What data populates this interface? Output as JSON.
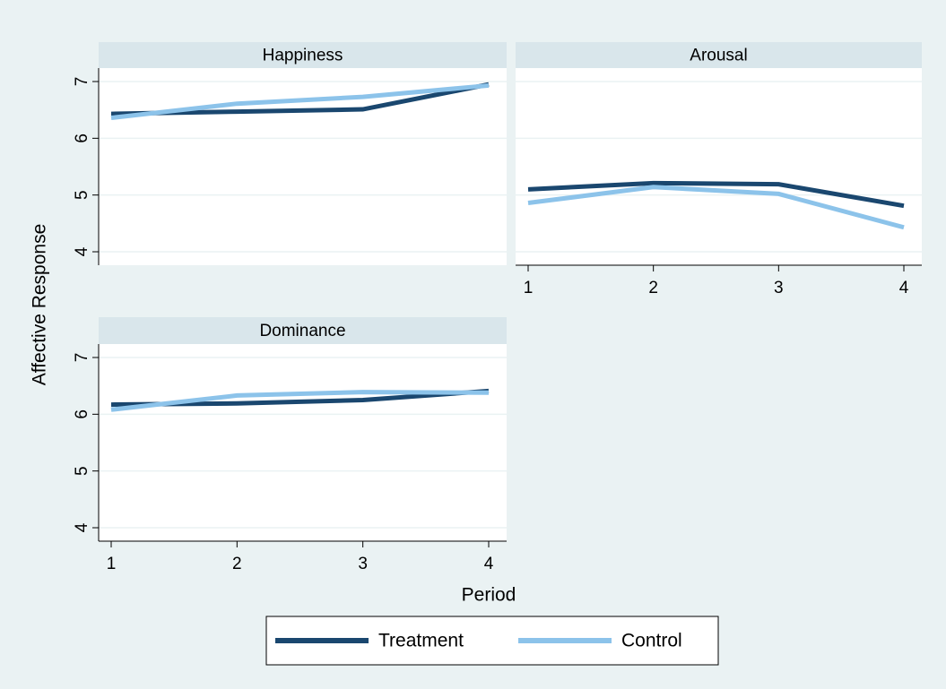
{
  "chart_data": [
    {
      "type": "line",
      "title": "Happiness",
      "ylabel": "Affective Response",
      "x": [
        1,
        2,
        3,
        4
      ],
      "xlim": [
        1,
        4
      ],
      "ylim": [
        4,
        7
      ],
      "yticks": [
        4,
        5,
        6,
        7
      ],
      "grid": true,
      "series": [
        {
          "name": "Treatment",
          "color": "#1a476f",
          "values": [
            6.43,
            6.47,
            6.51,
            6.95
          ]
        },
        {
          "name": "Control",
          "color": "#8cc3ea",
          "values": [
            6.36,
            6.61,
            6.73,
            6.93
          ]
        }
      ]
    },
    {
      "type": "line",
      "title": "Arousal",
      "x": [
        1,
        2,
        3,
        4
      ],
      "xlim": [
        1,
        4
      ],
      "xticks": [
        1,
        2,
        3,
        4
      ],
      "ylim": [
        4,
        7
      ],
      "yticks": [
        4,
        5,
        6,
        7
      ],
      "ytick_labels": false,
      "grid": true,
      "series": [
        {
          "name": "Treatment",
          "color": "#1a476f",
          "values": [
            5.1,
            5.21,
            5.19,
            4.81
          ]
        },
        {
          "name": "Control",
          "color": "#8cc3ea",
          "values": [
            4.86,
            5.14,
            5.02,
            4.43
          ]
        }
      ]
    },
    {
      "type": "line",
      "title": "Dominance",
      "xlabel": "Period",
      "x": [
        1,
        2,
        3,
        4
      ],
      "xlim": [
        1,
        4
      ],
      "xticks": [
        1,
        2,
        3,
        4
      ],
      "ylim": [
        4,
        7
      ],
      "yticks": [
        4,
        5,
        6,
        7
      ],
      "grid": true,
      "series": [
        {
          "name": "Treatment",
          "color": "#1a476f",
          "values": [
            6.17,
            6.19,
            6.25,
            6.41
          ]
        },
        {
          "name": "Control",
          "color": "#8cc3ea",
          "values": [
            6.08,
            6.33,
            6.39,
            6.38
          ]
        }
      ]
    }
  ]
}
